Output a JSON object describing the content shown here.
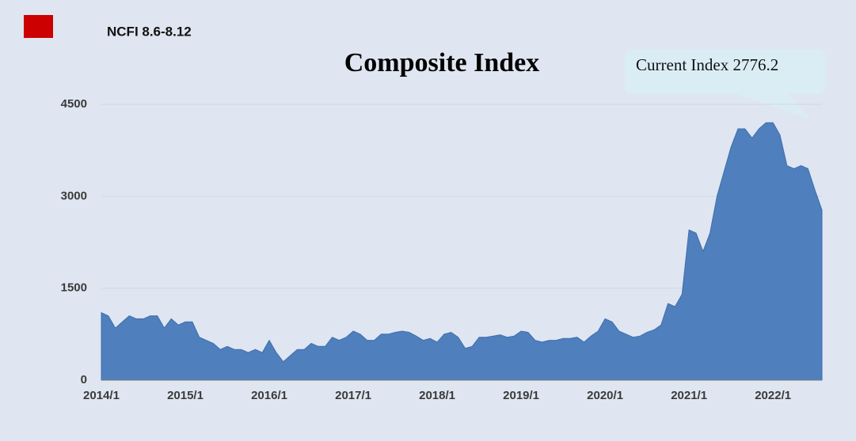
{
  "chart_data": {
    "type": "area",
    "title": "Composite Index",
    "annotation": "Current Index 2776.2",
    "categories": [
      "2014/1",
      null,
      null,
      null,
      null,
      null,
      null,
      null,
      null,
      null,
      null,
      null,
      "2015/1",
      null,
      null,
      null,
      null,
      null,
      null,
      null,
      null,
      null,
      null,
      null,
      "2016/1",
      null,
      null,
      null,
      null,
      null,
      null,
      null,
      null,
      null,
      null,
      null,
      "2017/1",
      null,
      null,
      null,
      null,
      null,
      null,
      null,
      null,
      null,
      null,
      null,
      "2018/1",
      null,
      null,
      null,
      null,
      null,
      null,
      null,
      null,
      null,
      null,
      null,
      "2019/1",
      null,
      null,
      null,
      null,
      null,
      null,
      null,
      null,
      null,
      null,
      null,
      "2020/1",
      null,
      null,
      null,
      null,
      null,
      null,
      null,
      null,
      null,
      null,
      null,
      "2021/1",
      null,
      null,
      null,
      null,
      null,
      null,
      null,
      null,
      null,
      null,
      null,
      "2022/1",
      null,
      null,
      null,
      null,
      null,
      null,
      null
    ],
    "series": [
      {
        "name": "NCFI 8.6-8.12",
        "color": "#4f7fbc",
        "legend_color": "#cc0000",
        "values": [
          1100,
          1050,
          850,
          950,
          1050,
          1000,
          1000,
          1050,
          1050,
          850,
          1000,
          900,
          950,
          950,
          700,
          650,
          600,
          500,
          550,
          500,
          500,
          450,
          500,
          450,
          650,
          450,
          300,
          400,
          500,
          500,
          600,
          550,
          550,
          700,
          650,
          700,
          800,
          750,
          650,
          650,
          750,
          750,
          780,
          800,
          780,
          720,
          650,
          680,
          620,
          750,
          780,
          700,
          520,
          550,
          700,
          700,
          720,
          740,
          700,
          720,
          800,
          780,
          650,
          620,
          650,
          650,
          680,
          680,
          700,
          620,
          720,
          800,
          1000,
          950,
          800,
          750,
          700,
          720,
          780,
          820,
          900,
          1250,
          1200,
          1400,
          2450,
          2400,
          2100,
          2400,
          3000,
          3400,
          3800,
          4100,
          4100,
          3950,
          4100,
          4200,
          4200,
          4000,
          3500,
          3450,
          3500,
          3450,
          3100,
          2776.2
        ]
      }
    ],
    "ylim": [
      0,
      4500
    ],
    "yticks": [
      0,
      1500,
      3000,
      4500
    ],
    "grid": true
  }
}
